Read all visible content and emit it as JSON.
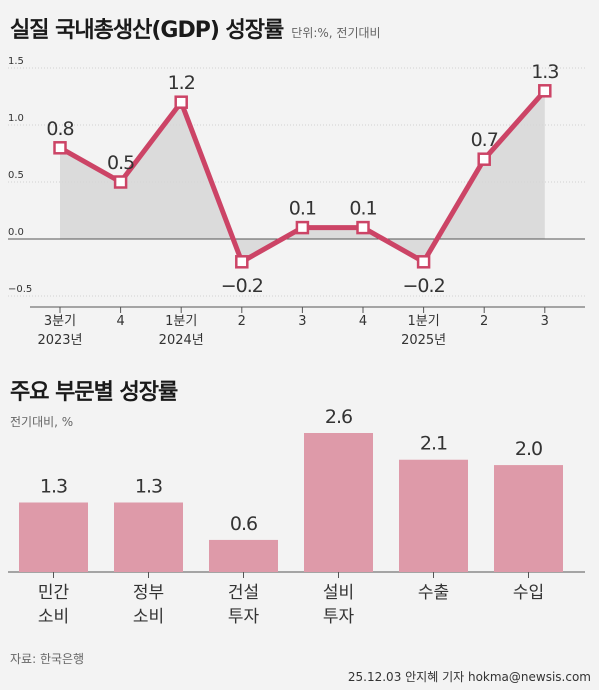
{
  "header": {
    "title": "실질 국내총생산(GDP) 성장률",
    "unit": "단위:%, 전기대비"
  },
  "section2": {
    "title": "주요 부문별 성장률",
    "note": "전기대비, %"
  },
  "footer": {
    "source": "자료: 한국은행",
    "credit": "25.12.03 안지혜 기자 hokma@newsis.com"
  },
  "colors": {
    "line": "#cc4466",
    "area": "#d6d6d6",
    "bar": "#de9aa9",
    "axis": "#555555",
    "background": "#f3f3f3"
  },
  "chart_data": [
    {
      "type": "line",
      "title": "실질 국내총생산(GDP) 성장률",
      "unit": "단위:%, 전기대비",
      "categories": [
        [
          "3분기",
          "2023년"
        ],
        [
          "4"
        ],
        [
          "1분기",
          "2024년"
        ],
        [
          "2"
        ],
        [
          "3"
        ],
        [
          "4"
        ],
        [
          "1분기",
          "2025년"
        ],
        [
          "2"
        ],
        [
          "3"
        ]
      ],
      "values": [
        0.8,
        0.5,
        1.2,
        -0.2,
        0.1,
        0.1,
        -0.2,
        0.7,
        1.3
      ],
      "data_labels": [
        "0.8",
        "0.5",
        "1.2",
        "−0.2",
        "0.1",
        "0.1",
        "−0.2",
        "0.7",
        "1.3"
      ],
      "yticks": [
        "1.5",
        "1.0",
        "0.5",
        "0.0",
        "−0.5"
      ],
      "ytick_values": [
        1.5,
        1.0,
        0.5,
        0.0,
        -0.5
      ],
      "ylim": [
        -0.5,
        1.5
      ],
      "grid": true
    },
    {
      "type": "bar",
      "title": "주요 부문별 성장률",
      "unit": "전기대비, %",
      "categories": [
        [
          "민간",
          "소비"
        ],
        [
          "정부",
          "소비"
        ],
        [
          "건설",
          "투자"
        ],
        [
          "설비",
          "투자"
        ],
        [
          "수출"
        ],
        [
          "수입"
        ]
      ],
      "values": [
        1.3,
        1.3,
        0.6,
        2.6,
        2.1,
        2.0
      ],
      "data_labels": [
        "1.3",
        "1.3",
        "0.6",
        "2.6",
        "2.1",
        "2.0"
      ],
      "ylim": [
        0,
        2.6
      ]
    }
  ]
}
